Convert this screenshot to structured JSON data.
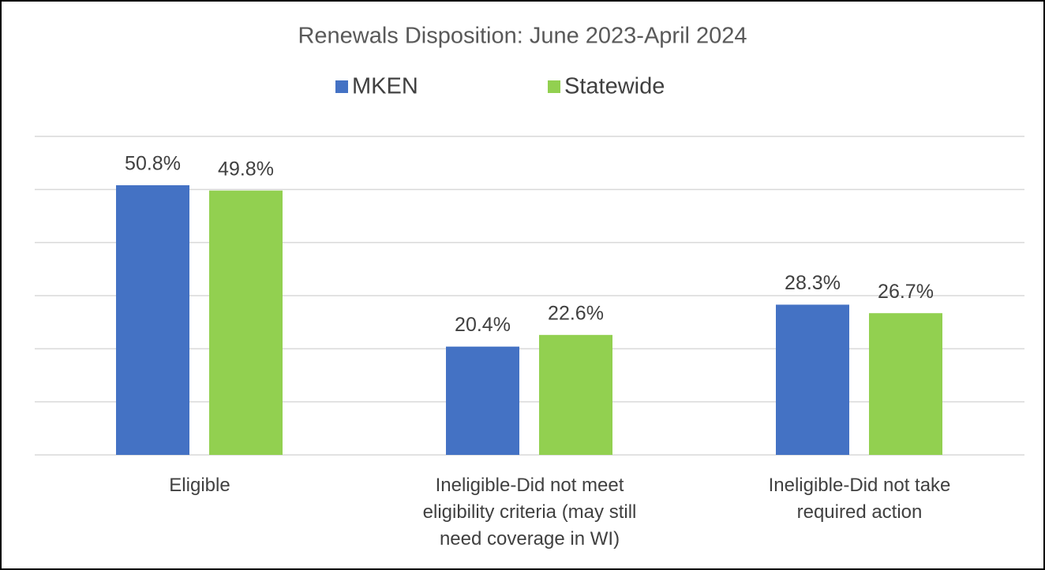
{
  "chart_data": {
    "type": "bar",
    "title": "Renewals Disposition: June 2023-April 2024",
    "categories": [
      "Eligible",
      "Ineligible-Did not meet eligibility criteria (may still need coverage in WI)",
      "Ineligible-Did not take required action"
    ],
    "series": [
      {
        "name": "MKEN",
        "color": "#4472c4",
        "values": [
          50.8,
          20.4,
          28.3
        ],
        "value_labels": [
          "50.8%",
          "20.4%",
          "28.3%"
        ]
      },
      {
        "name": "Statewide",
        "color": "#92d050",
        "values": [
          49.8,
          22.6,
          26.7
        ],
        "value_labels": [
          "49.8%",
          "22.6%",
          "26.7%"
        ]
      }
    ],
    "ylim": [
      0,
      60
    ],
    "yticks": [
      0,
      10,
      20,
      30,
      40,
      50,
      60
    ],
    "grid": true,
    "legend": "top"
  }
}
